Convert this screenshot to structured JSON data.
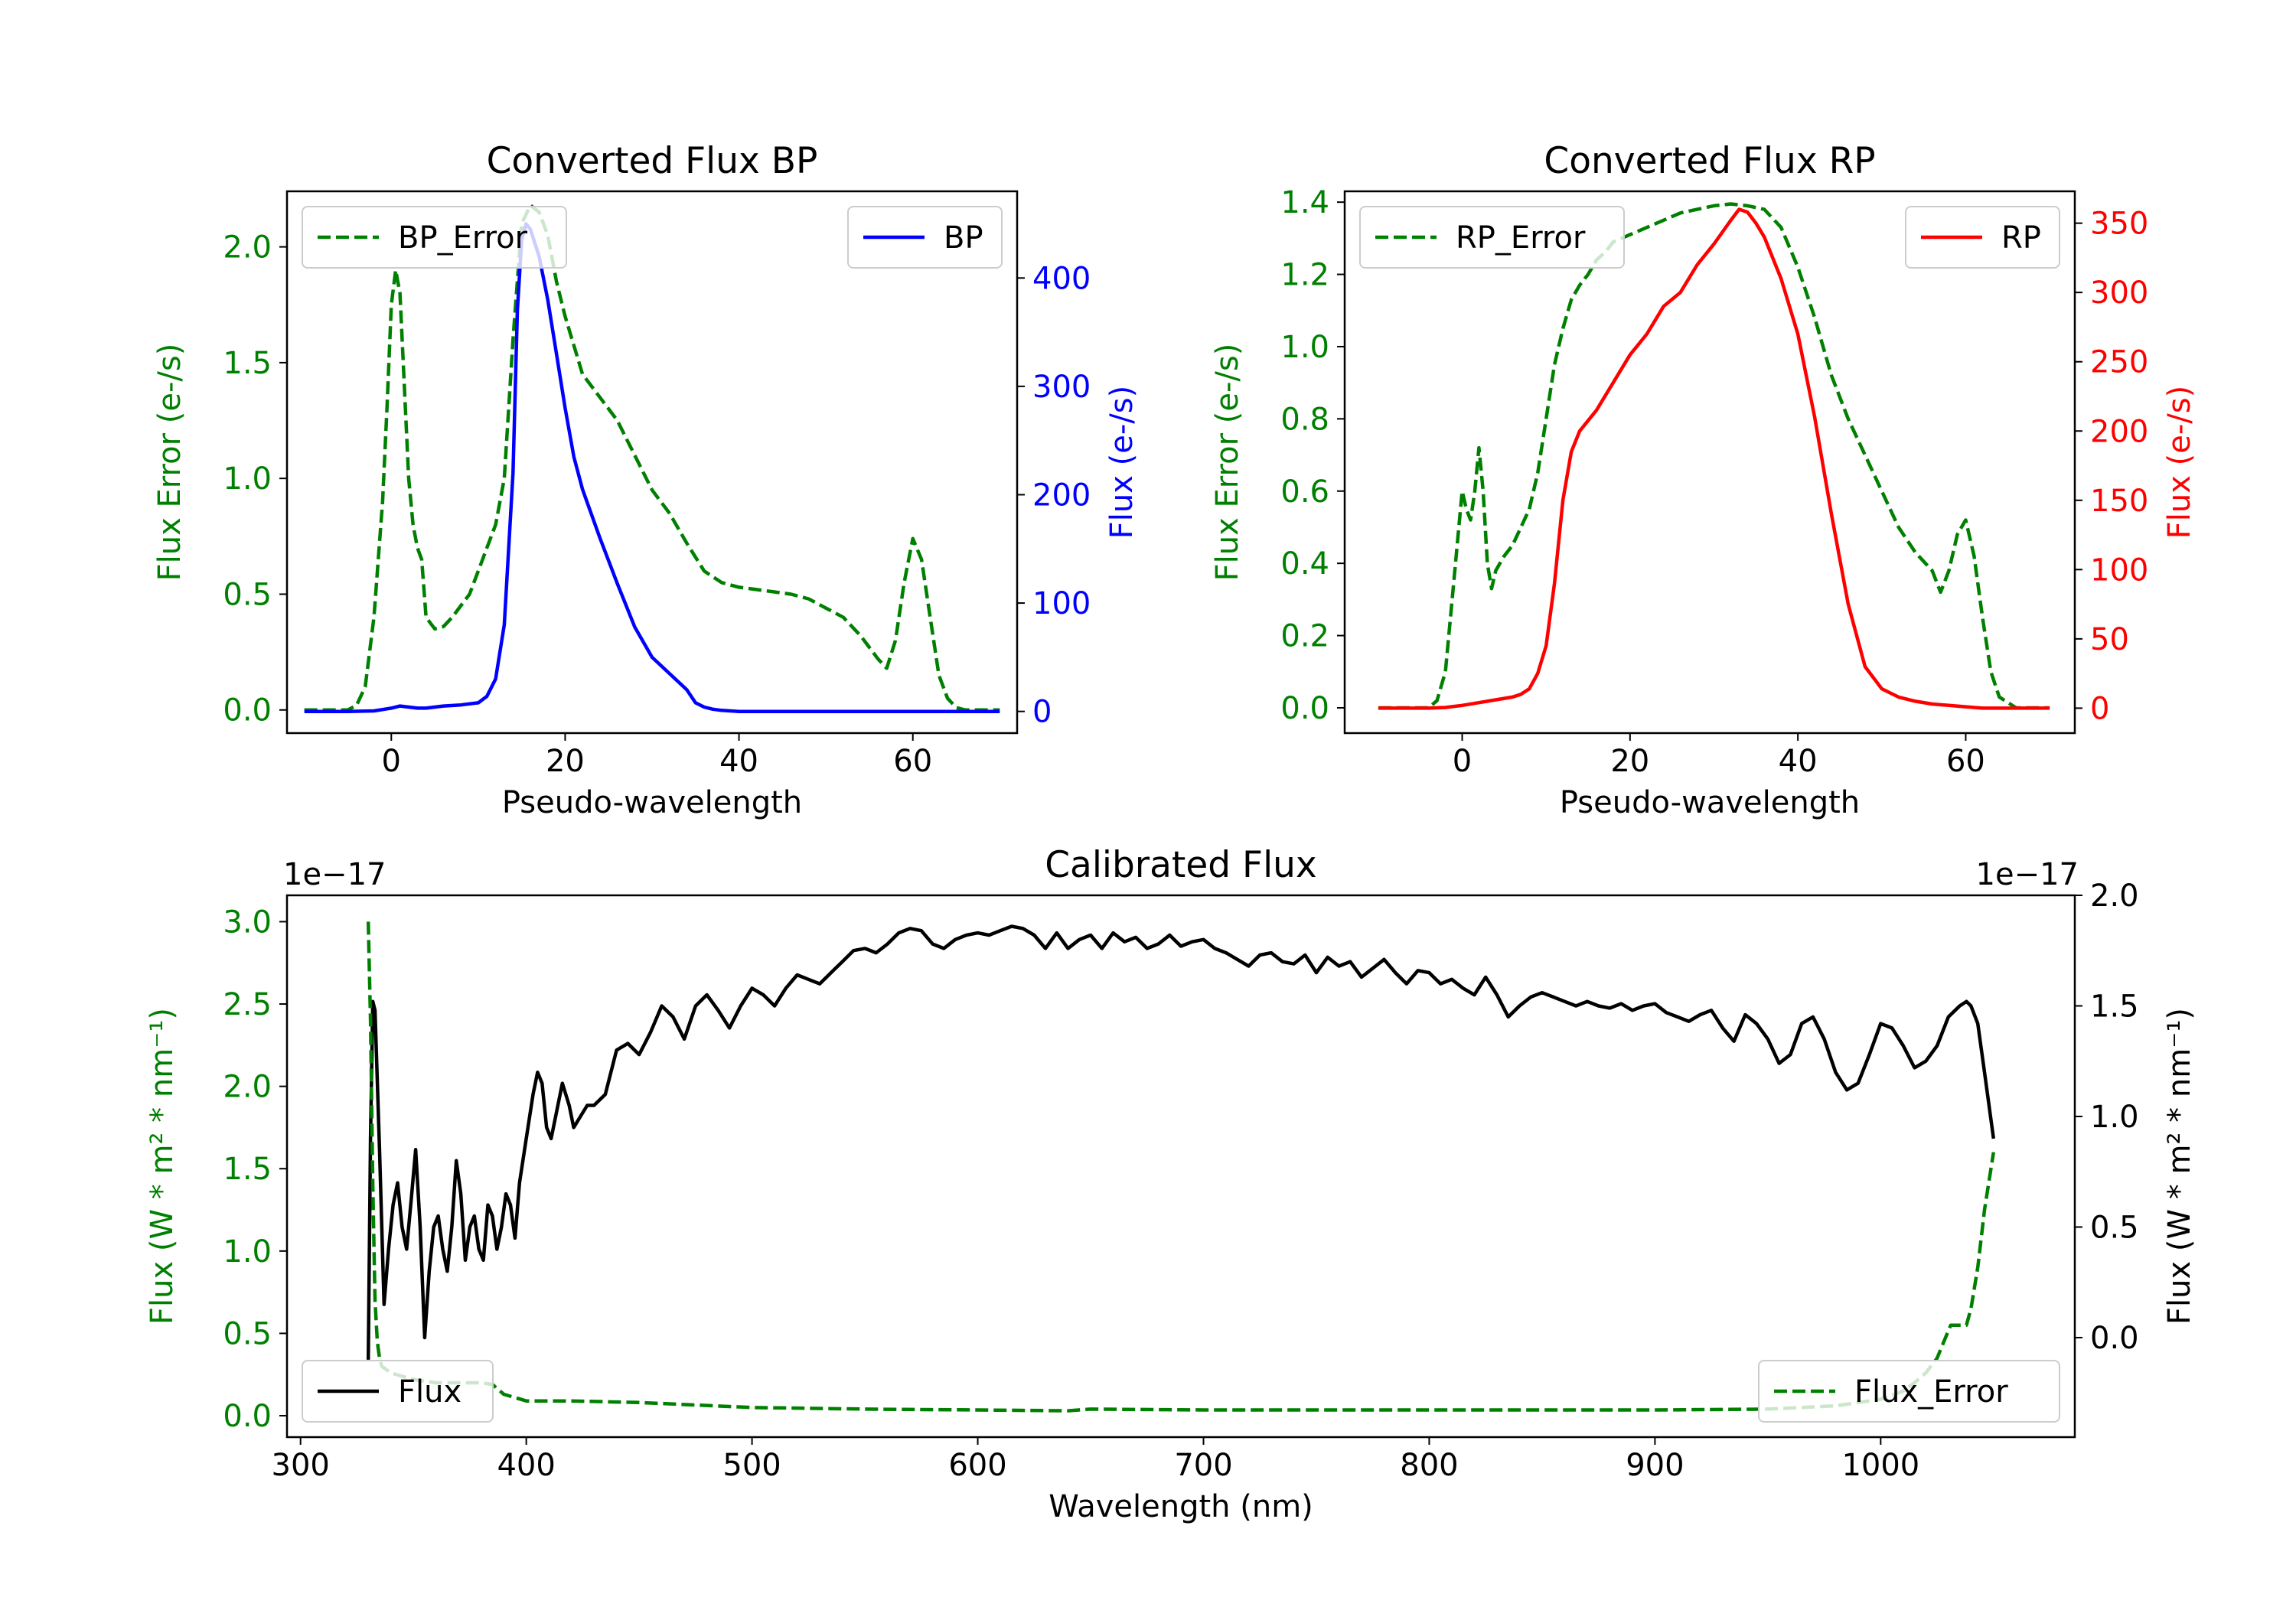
{
  "chart_data": [
    {
      "id": "bp",
      "type": "line",
      "title": "Converted Flux BP",
      "xlabel": "Pseudo-wavelength",
      "ylabel_left": "Flux Error (e-/s)",
      "ylabel_right": "Flux (e-/s)",
      "xlim": [
        -12,
        72
      ],
      "ylim_left": [
        -0.1,
        2.24
      ],
      "ylim_right": [
        -20,
        480
      ],
      "xticks": [
        0,
        20,
        40,
        60
      ],
      "yticks_left": [
        0.0,
        0.5,
        1.0,
        1.5,
        2.0
      ],
      "yticks_left_labels": [
        "0.0",
        "0.5",
        "1.0",
        "1.5",
        "2.0"
      ],
      "yticks_right": [
        0,
        100,
        200,
        300,
        400
      ],
      "yticks_right_labels": [
        "0",
        "100",
        "200",
        "300",
        "400"
      ],
      "series": [
        {
          "name": "BP_Error",
          "axis": "left",
          "style": "dashed",
          "color": "#008000",
          "x": [
            -10,
            -5,
            -4,
            -3,
            -2,
            -1,
            -0.5,
            0,
            0.5,
            1,
            1.5,
            2,
            2.5,
            3,
            3.5,
            4,
            5,
            6,
            7,
            8,
            9,
            10,
            11,
            12,
            13,
            14,
            15,
            16,
            17,
            18,
            19,
            20,
            22,
            24,
            26,
            28,
            30,
            32,
            34,
            36,
            38,
            40,
            42,
            44,
            46,
            48,
            50,
            52,
            54,
            56,
            57,
            58,
            59,
            60,
            61,
            62,
            63,
            64,
            65,
            66,
            68,
            70
          ],
          "y": [
            0.0,
            0.0,
            0.02,
            0.1,
            0.4,
            0.9,
            1.3,
            1.75,
            1.9,
            1.8,
            1.4,
            1.0,
            0.8,
            0.7,
            0.65,
            0.4,
            0.35,
            0.36,
            0.4,
            0.45,
            0.5,
            0.6,
            0.7,
            0.8,
            1.0,
            1.6,
            2.1,
            2.18,
            2.15,
            2.05,
            1.85,
            1.7,
            1.45,
            1.35,
            1.25,
            1.1,
            0.95,
            0.85,
            0.72,
            0.6,
            0.55,
            0.53,
            0.52,
            0.51,
            0.5,
            0.48,
            0.44,
            0.4,
            0.32,
            0.22,
            0.18,
            0.3,
            0.55,
            0.74,
            0.65,
            0.4,
            0.15,
            0.05,
            0.01,
            0.0,
            0.0,
            0.0
          ]
        },
        {
          "name": "BP",
          "axis": "right",
          "style": "solid",
          "color": "#0000ff",
          "x": [
            -10,
            -5,
            -2,
            0,
            1,
            2,
            3,
            4,
            6,
            8,
            10,
            11,
            12,
            13,
            14,
            14.5,
            15,
            15.5,
            16,
            17,
            18,
            19,
            20,
            21,
            22,
            24,
            26,
            28,
            30,
            32,
            34,
            35,
            36,
            37,
            38,
            40,
            44,
            48,
            52,
            56,
            60,
            64,
            70
          ],
          "y": [
            0,
            0,
            0.5,
            3,
            5,
            4,
            3,
            3,
            5,
            6,
            8,
            14,
            30,
            80,
            220,
            370,
            435,
            450,
            445,
            420,
            380,
            330,
            280,
            235,
            205,
            160,
            118,
            78,
            50,
            35,
            20,
            8,
            4,
            2,
            1,
            0,
            0,
            0,
            0,
            0,
            0,
            0,
            0
          ]
        }
      ],
      "legend": [
        {
          "label": "BP_Error",
          "placement": "upper left"
        },
        {
          "label": "BP",
          "placement": "upper right"
        }
      ]
    },
    {
      "id": "rp",
      "type": "line",
      "title": "Converted Flux RP",
      "xlabel": "Pseudo-wavelength",
      "ylabel_left": "Flux Error (e-/s)",
      "ylabel_right": "Flux (e-/s)",
      "xlim": [
        -14,
        73
      ],
      "ylim_left": [
        -0.07,
        1.43
      ],
      "ylim_right": [
        -18,
        373
      ],
      "xticks": [
        0,
        20,
        40,
        60
      ],
      "yticks_left": [
        0.0,
        0.2,
        0.4,
        0.6,
        0.8,
        1.0,
        1.2,
        1.4
      ],
      "yticks_left_labels": [
        "0.0",
        "0.2",
        "0.4",
        "0.6",
        "0.8",
        "1.0",
        "1.2",
        "1.4"
      ],
      "yticks_right": [
        0,
        50,
        100,
        150,
        200,
        250,
        300,
        350
      ],
      "yticks_right_labels": [
        "0",
        "50",
        "100",
        "150",
        "200",
        "250",
        "300",
        "350"
      ],
      "series": [
        {
          "name": "RP_Error",
          "axis": "left",
          "style": "dashed",
          "color": "#008000",
          "x": [
            -10,
            -4,
            -3,
            -2,
            -1,
            0,
            0.5,
            1,
            1.5,
            2,
            2.5,
            3,
            3.5,
            4,
            5,
            6,
            7,
            8,
            9,
            10,
            11,
            12,
            13,
            14,
            15,
            16,
            17,
            18,
            19,
            20,
            22,
            24,
            26,
            28,
            30,
            32,
            34,
            36,
            38,
            40,
            42,
            44,
            46,
            48,
            50,
            52,
            54,
            56,
            57,
            58,
            59,
            60,
            61,
            62,
            63,
            64,
            66,
            70
          ],
          "y": [
            0.0,
            0.0,
            0.02,
            0.1,
            0.35,
            0.6,
            0.55,
            0.52,
            0.6,
            0.72,
            0.6,
            0.4,
            0.33,
            0.38,
            0.42,
            0.45,
            0.5,
            0.55,
            0.65,
            0.8,
            0.95,
            1.05,
            1.13,
            1.17,
            1.2,
            1.24,
            1.26,
            1.29,
            1.3,
            1.31,
            1.33,
            1.35,
            1.37,
            1.38,
            1.39,
            1.395,
            1.39,
            1.38,
            1.33,
            1.22,
            1.08,
            0.92,
            0.8,
            0.7,
            0.6,
            0.5,
            0.43,
            0.38,
            0.32,
            0.38,
            0.48,
            0.52,
            0.42,
            0.25,
            0.1,
            0.03,
            0.0,
            0.0
          ]
        },
        {
          "name": "RP",
          "axis": "right",
          "style": "solid",
          "color": "#ff0000",
          "x": [
            -10,
            -4,
            -2,
            0,
            2,
            4,
            6,
            7,
            8,
            9,
            10,
            11,
            12,
            13,
            14,
            16,
            18,
            20,
            22,
            24,
            26,
            28,
            30,
            32,
            33,
            34,
            35,
            36,
            38,
            40,
            42,
            44,
            46,
            48,
            50,
            52,
            54,
            56,
            58,
            60,
            62,
            64,
            66,
            70
          ],
          "y": [
            0,
            0,
            0.5,
            2,
            4,
            6,
            8,
            10,
            14,
            25,
            45,
            90,
            150,
            185,
            200,
            215,
            235,
            255,
            270,
            290,
            300,
            320,
            335,
            352,
            360,
            358,
            350,
            340,
            310,
            270,
            210,
            140,
            75,
            30,
            14,
            8,
            5,
            3,
            2,
            1,
            0,
            0,
            0,
            0
          ]
        }
      ],
      "legend": [
        {
          "label": "RP_Error",
          "placement": "upper left"
        },
        {
          "label": "RP",
          "placement": "upper right"
        }
      ]
    },
    {
      "id": "cal",
      "type": "line",
      "title": "Calibrated Flux",
      "xlabel": "Wavelength (nm)",
      "ylabel_left": "Flux (W * m² * nm⁻¹)",
      "ylabel_right": "Flux (W * m² * nm⁻¹)",
      "offset_left": "1e−17",
      "offset_right": "1e−17",
      "xlim": [
        294,
        1086
      ],
      "ylim_left": [
        -0.13,
        3.16
      ],
      "ylim_right": [
        -0.45,
        2.0
      ],
      "xticks": [
        300,
        400,
        500,
        600,
        700,
        800,
        900,
        1000
      ],
      "yticks_left": [
        0.0,
        0.5,
        1.0,
        1.5,
        2.0,
        2.5,
        3.0
      ],
      "yticks_left_labels": [
        "0.0",
        "0.5",
        "1.0",
        "1.5",
        "2.0",
        "2.5",
        "3.0"
      ],
      "yticks_right": [
        0.0,
        0.5,
        1.0,
        1.5,
        2.0
      ],
      "yticks_right_labels": [
        "0.0",
        "0.5",
        "1.0",
        "1.5",
        "2.0"
      ],
      "series": [
        {
          "name": "Flux",
          "axis": "right",
          "style": "solid",
          "color": "#000000",
          "x": [
            330,
            331,
            332,
            333,
            335,
            337,
            339,
            341,
            343,
            345,
            347,
            349,
            351,
            353,
            355,
            357,
            359,
            361,
            363,
            365,
            367,
            369,
            371,
            373,
            375,
            377,
            379,
            381,
            383,
            385,
            387,
            389,
            391,
            393,
            395,
            397,
            400,
            403,
            405,
            407,
            409,
            411,
            413,
            416,
            419,
            421,
            424,
            427,
            430,
            435,
            440,
            445,
            450,
            455,
            460,
            465,
            470,
            475,
            480,
            485,
            490,
            495,
            500,
            505,
            510,
            515,
            520,
            525,
            530,
            535,
            540,
            545,
            550,
            555,
            560,
            565,
            570,
            575,
            580,
            585,
            590,
            595,
            600,
            605,
            610,
            615,
            620,
            625,
            630,
            635,
            640,
            645,
            650,
            655,
            660,
            665,
            670,
            675,
            680,
            685,
            690,
            695,
            700,
            705,
            710,
            715,
            720,
            725,
            730,
            735,
            740,
            745,
            750,
            755,
            760,
            765,
            770,
            775,
            780,
            785,
            790,
            795,
            800,
            805,
            810,
            815,
            820,
            825,
            830,
            835,
            840,
            845,
            850,
            855,
            860,
            865,
            870,
            875,
            880,
            885,
            890,
            895,
            900,
            905,
            910,
            915,
            920,
            925,
            930,
            935,
            940,
            945,
            950,
            955,
            960,
            965,
            970,
            975,
            980,
            985,
            990,
            995,
            1000,
            1005,
            1010,
            1015,
            1020,
            1025,
            1030,
            1035,
            1038,
            1040,
            1043,
            1046,
            1050
          ],
          "y": [
            -0.1,
            0.9,
            1.52,
            1.48,
            0.85,
            0.15,
            0.4,
            0.6,
            0.7,
            0.5,
            0.4,
            0.62,
            0.85,
            0.5,
            0.0,
            0.3,
            0.5,
            0.55,
            0.4,
            0.3,
            0.5,
            0.8,
            0.65,
            0.35,
            0.5,
            0.55,
            0.4,
            0.35,
            0.6,
            0.55,
            0.4,
            0.5,
            0.65,
            0.6,
            0.45,
            0.7,
            0.9,
            1.1,
            1.2,
            1.15,
            0.95,
            0.9,
            1.0,
            1.15,
            1.05,
            0.95,
            1.0,
            1.05,
            1.05,
            1.1,
            1.3,
            1.33,
            1.28,
            1.38,
            1.5,
            1.45,
            1.35,
            1.5,
            1.55,
            1.48,
            1.4,
            1.5,
            1.58,
            1.55,
            1.5,
            1.58,
            1.64,
            1.62,
            1.6,
            1.65,
            1.7,
            1.75,
            1.76,
            1.74,
            1.78,
            1.83,
            1.85,
            1.84,
            1.78,
            1.76,
            1.8,
            1.82,
            1.83,
            1.82,
            1.84,
            1.86,
            1.85,
            1.82,
            1.76,
            1.83,
            1.76,
            1.8,
            1.82,
            1.76,
            1.83,
            1.79,
            1.81,
            1.76,
            1.78,
            1.82,
            1.77,
            1.79,
            1.8,
            1.76,
            1.74,
            1.71,
            1.68,
            1.73,
            1.74,
            1.7,
            1.69,
            1.73,
            1.65,
            1.72,
            1.68,
            1.7,
            1.63,
            1.67,
            1.71,
            1.65,
            1.6,
            1.66,
            1.65,
            1.6,
            1.62,
            1.58,
            1.55,
            1.63,
            1.55,
            1.45,
            1.5,
            1.54,
            1.56,
            1.54,
            1.52,
            1.5,
            1.52,
            1.5,
            1.49,
            1.51,
            1.48,
            1.5,
            1.51,
            1.47,
            1.45,
            1.43,
            1.46,
            1.48,
            1.4,
            1.34,
            1.46,
            1.42,
            1.35,
            1.24,
            1.28,
            1.42,
            1.45,
            1.35,
            1.2,
            1.12,
            1.15,
            1.28,
            1.42,
            1.4,
            1.32,
            1.22,
            1.25,
            1.32,
            1.45,
            1.5,
            1.52,
            1.5,
            1.42,
            1.2,
            0.9
          ],
          "label_placement": "lower left"
        },
        {
          "name": "Flux_Error",
          "axis": "left",
          "style": "dashed",
          "color": "#008000",
          "x": [
            330,
            331,
            332,
            333,
            334,
            335,
            336,
            338,
            340,
            345,
            350,
            360,
            370,
            380,
            385,
            390,
            400,
            420,
            450,
            500,
            550,
            600,
            640,
            650,
            700,
            750,
            800,
            850,
            900,
            950,
            980,
            1000,
            1010,
            1015,
            1020,
            1025,
            1028,
            1031,
            1035,
            1038,
            1040,
            1043,
            1046,
            1050
          ],
          "y": [
            3.0,
            2.4,
            1.4,
            0.7,
            0.45,
            0.35,
            0.3,
            0.28,
            0.26,
            0.24,
            0.22,
            0.2,
            0.2,
            0.2,
            0.19,
            0.13,
            0.09,
            0.09,
            0.08,
            0.05,
            0.04,
            0.035,
            0.03,
            0.04,
            0.035,
            0.035,
            0.035,
            0.035,
            0.035,
            0.04,
            0.06,
            0.1,
            0.15,
            0.2,
            0.26,
            0.35,
            0.45,
            0.55,
            0.55,
            0.55,
            0.65,
            0.9,
            1.25,
            1.6
          ],
          "label_placement": "lower right"
        }
      ]
    }
  ]
}
